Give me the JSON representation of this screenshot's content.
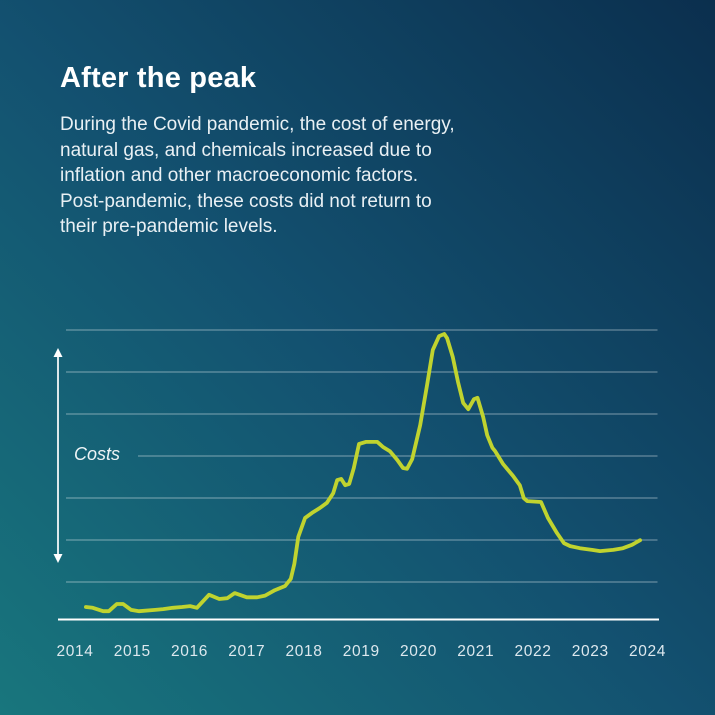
{
  "header": {
    "title": "After the peak",
    "description": "During the Covid pandemic, the cost of energy,\nnatural gas, and chemicals increased due to\ninflation and other macroeconomic factors.\nPost-pandemic, these costs did not return to\ntheir pre-pandemic levels."
  },
  "chart_data": {
    "type": "line",
    "title": "After the peak",
    "xlabel": "",
    "ylabel": "Costs",
    "x_ticks": [
      "2014",
      "2015",
      "2016",
      "2017",
      "2018",
      "2019",
      "2020",
      "2021",
      "2022",
      "2023",
      "2024"
    ],
    "x_range": [
      2014,
      2024.3
    ],
    "y_axis": {
      "label": "Costs",
      "units": "relative cost index (1 unit = 1 gridline)",
      "range": [
        0,
        6.9
      ],
      "tick_labels": "none"
    },
    "gridlines": 7,
    "grid": "horizontal",
    "legend": "none",
    "annotations": [
      "double-headed vertical arrow left of plot spanning the Costs scale"
    ],
    "series": [
      {
        "name": "Costs",
        "x": [
          2014.19,
          2014.31,
          2014.49,
          2014.59,
          2014.73,
          2014.84,
          2014.98,
          2015.12,
          2015.4,
          2015.54,
          2015.71,
          2015.87,
          2016.01,
          2016.13,
          2016.34,
          2016.52,
          2016.66,
          2016.79,
          2017.0,
          2017.18,
          2017.32,
          2017.49,
          2017.67,
          2017.77,
          2017.83,
          2017.9,
          2018.02,
          2018.14,
          2018.28,
          2018.4,
          2018.51,
          2018.58,
          2018.65,
          2018.72,
          2018.79,
          2018.87,
          2018.96,
          2019.08,
          2019.28,
          2019.38,
          2019.5,
          2019.63,
          2019.73,
          2019.8,
          2019.89,
          2020.03,
          2020.15,
          2020.25,
          2020.36,
          2020.45,
          2020.5,
          2020.6,
          2020.69,
          2020.78,
          2020.87,
          2020.97,
          2021.03,
          2021.13,
          2021.2,
          2021.29,
          2021.34,
          2021.48,
          2021.65,
          2021.77,
          2021.84,
          2021.9,
          2022.14,
          2022.26,
          2022.42,
          2022.54,
          2022.65,
          2022.82,
          2023.03,
          2023.17,
          2023.4,
          2023.57,
          2023.73,
          2023.87
        ],
        "y": [
          0.31,
          0.29,
          0.21,
          0.21,
          0.38,
          0.38,
          0.24,
          0.21,
          0.24,
          0.26,
          0.29,
          0.31,
          0.33,
          0.29,
          0.6,
          0.5,
          0.52,
          0.64,
          0.54,
          0.54,
          0.58,
          0.71,
          0.81,
          0.98,
          1.33,
          1.98,
          2.43,
          2.55,
          2.67,
          2.79,
          3.02,
          3.33,
          3.36,
          3.21,
          3.24,
          3.62,
          4.19,
          4.24,
          4.24,
          4.12,
          4.02,
          3.81,
          3.62,
          3.6,
          3.83,
          4.64,
          5.6,
          6.43,
          6.76,
          6.81,
          6.71,
          6.26,
          5.67,
          5.17,
          5.02,
          5.26,
          5.29,
          4.83,
          4.4,
          4.1,
          4.02,
          3.71,
          3.43,
          3.21,
          2.9,
          2.83,
          2.81,
          2.43,
          2.07,
          1.83,
          1.76,
          1.71,
          1.67,
          1.64,
          1.67,
          1.71,
          1.79,
          1.9
        ]
      }
    ]
  },
  "colors": {
    "line": "#c0d32f",
    "background_top_right": "#0b2f4e",
    "background_mid": "#135170",
    "background_bottom_left": "#18767d",
    "title_text": "#ffffff",
    "body_text": "#e9f0f4",
    "grid": "#ffffff",
    "axis": "#ffffff"
  }
}
